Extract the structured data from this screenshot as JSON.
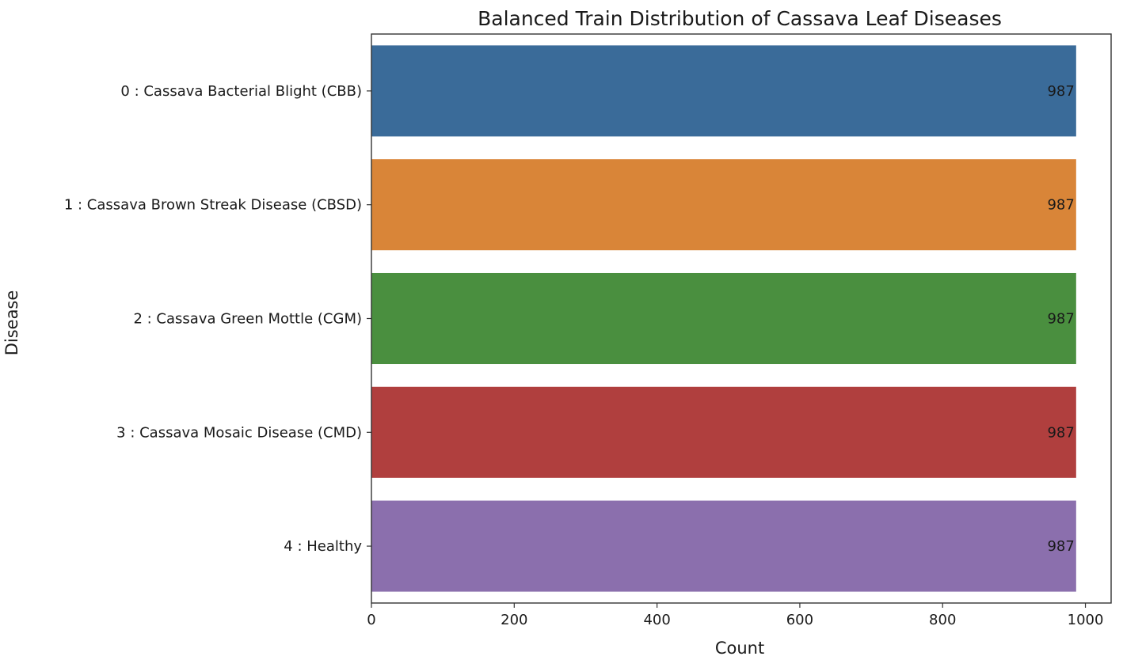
{
  "chart_data": {
    "type": "bar",
    "orientation": "horizontal",
    "title": "Balanced Train Distribution of Cassava Leaf Diseases",
    "xlabel": "Count",
    "ylabel": "Disease",
    "categories": [
      "0 : Cassava Bacterial Blight (CBB)",
      "1 : Cassava Brown Streak Disease (CBSD)",
      "2 : Cassava Green Mottle (CGM)",
      "3 : Cassava Mosaic Disease (CMD)",
      "4 : Healthy"
    ],
    "values": [
      987,
      987,
      987,
      987,
      987
    ],
    "data_labels": [
      "987",
      "987",
      "987",
      "987",
      "987"
    ],
    "colors": [
      "#3a6b99",
      "#d98538",
      "#4a8f3f",
      "#b03f3e",
      "#8b6fad"
    ],
    "xlim": [
      0,
      1036
    ],
    "xticks": [
      0,
      200,
      400,
      600,
      800,
      1000
    ],
    "grid": false,
    "legend": "none"
  }
}
